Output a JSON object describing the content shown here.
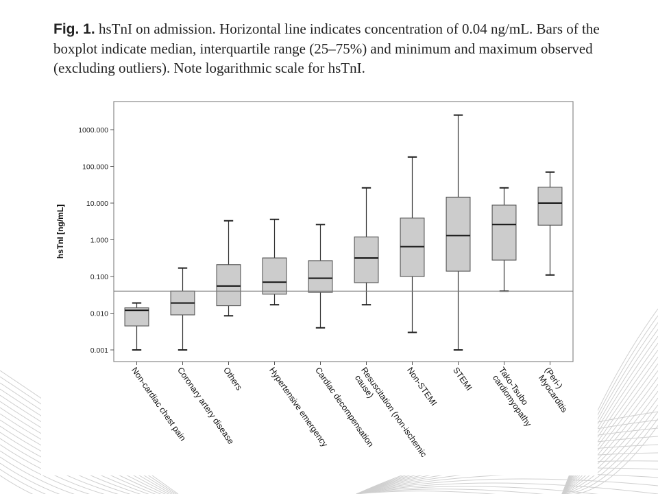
{
  "caption": {
    "label": "Fig. 1.",
    "text": "hsTnI on admission. Horizontal line indicates concentration of 0.04 ng/mL. Bars of the boxplot indicate median, interquartile range (25–75%) and minimum and maximum observed (excluding outliers). Note logarithmic scale for hsTnI."
  },
  "chart_data": {
    "type": "boxplot",
    "title": "",
    "xlabel": "",
    "ylabel": "hsTnI [ng/mL]",
    "yscale": "log",
    "ylim": [
      0.0007,
      3000
    ],
    "yticks": [
      {
        "value": 0.001,
        "label": "0.001"
      },
      {
        "value": 0.01,
        "label": "0.010"
      },
      {
        "value": 0.1,
        "label": "0.100"
      },
      {
        "value": 1,
        "label": "1.000"
      },
      {
        "value": 10,
        "label": "10.000"
      },
      {
        "value": 100,
        "label": "100.000"
      },
      {
        "value": 1000,
        "label": "1000.000"
      }
    ],
    "reference_line": {
      "value": 0.04
    },
    "grid": false,
    "box_color": "#cccccc",
    "categories": [
      [
        "Non-cardiac chest pain"
      ],
      [
        "Coronary artery disease"
      ],
      [
        "Others"
      ],
      [
        "Hypertensive emergency"
      ],
      [
        "Cardiac decompensation"
      ],
      [
        "Resuscitation (non-ischemic",
        "cause)"
      ],
      [
        "Non-STEMI"
      ],
      [
        "STEMI"
      ],
      [
        "Tako-Tsubo",
        "cardiomyopathy"
      ],
      [
        "(Peri-)",
        "Myocarditis"
      ]
    ],
    "boxes": [
      {
        "min": 0.001,
        "q1": 0.0045,
        "median": 0.012,
        "q3": 0.014,
        "max": 0.019
      },
      {
        "min": 0.001,
        "q1": 0.009,
        "median": 0.019,
        "q3": 0.04,
        "max": 0.17
      },
      {
        "min": 0.0085,
        "q1": 0.016,
        "median": 0.055,
        "q3": 0.21,
        "max": 3.3
      },
      {
        "min": 0.017,
        "q1": 0.033,
        "median": 0.07,
        "q3": 0.32,
        "max": 3.6
      },
      {
        "min": 0.004,
        "q1": 0.037,
        "median": 0.09,
        "q3": 0.27,
        "max": 2.6
      },
      {
        "min": 0.017,
        "q1": 0.068,
        "median": 0.32,
        "q3": 1.2,
        "max": 26
      },
      {
        "min": 0.003,
        "q1": 0.1,
        "median": 0.65,
        "q3": 3.9,
        "max": 180
      },
      {
        "min": 0.001,
        "q1": 0.14,
        "median": 1.3,
        "q3": 14.5,
        "max": 2500
      },
      {
        "min": 0.04,
        "q1": 0.28,
        "median": 2.6,
        "q3": 8.8,
        "max": 26
      },
      {
        "min": 0.11,
        "q1": 2.5,
        "median": 10,
        "q3": 27,
        "max": 70
      }
    ]
  }
}
